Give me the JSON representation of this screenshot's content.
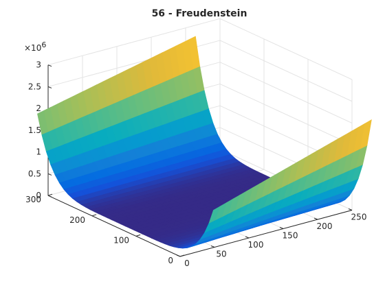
{
  "chart_data": {
    "type": "surface",
    "title": "56 - Freudenstein",
    "z_multiplier": "×10",
    "z_multiplier_exponent": "6",
    "x_ticks": [
      "0",
      "50",
      "100",
      "150",
      "200",
      "250"
    ],
    "y_ticks": [
      "0",
      "100",
      "200",
      "300"
    ],
    "z_ticks": [
      "0",
      "0.5",
      "1",
      "1.5",
      "2",
      "2.5",
      "3"
    ],
    "xlim": [
      0,
      250
    ],
    "ylim": [
      0,
      300
    ],
    "zlim": [
      0,
      3000000
    ],
    "grid": true,
    "colormap": "parula",
    "surface": {
      "x_range": [
        10,
        240
      ],
      "y_range": [
        -60,
        340
      ],
      "shape": "parabolic trough along x, minimum near y = 140",
      "z_at_y_minus_60": [
        1300000,
        2400000
      ],
      "z_at_y_340": [
        1650000,
        2450000
      ],
      "z_min": 0
    }
  }
}
